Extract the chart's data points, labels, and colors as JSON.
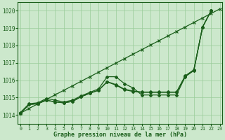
{
  "title": "Graphe pression niveau de la mer (hPa)",
  "hours": [
    0,
    1,
    2,
    3,
    4,
    5,
    6,
    7,
    8,
    9,
    10,
    11,
    12,
    13,
    14,
    15,
    16,
    17,
    18,
    19,
    20,
    21,
    22,
    23
  ],
  "ylim": [
    1013.5,
    1020.5
  ],
  "xlim": [
    -0.3,
    23.3
  ],
  "yticks": [
    1014,
    1015,
    1016,
    1017,
    1018,
    1019,
    1020
  ],
  "bg_color": "#cce8cc",
  "grid_color": "#99cc99",
  "line_color": "#1a5e1a",
  "linear_series": [
    1014.1,
    1014.38,
    1014.64,
    1014.9,
    1015.16,
    1015.42,
    1015.68,
    1015.94,
    1016.2,
    1016.46,
    1016.72,
    1016.98,
    1017.24,
    1017.5,
    1017.76,
    1018.02,
    1018.28,
    1018.54,
    1018.8,
    1019.06,
    1019.32,
    1019.58,
    1019.84,
    1020.1
  ],
  "series": [
    [
      1014.15,
      1014.65,
      1014.7,
      1014.95,
      1014.85,
      1014.75,
      1014.85,
      1015.1,
      1015.3,
      1015.5,
      1016.2,
      1016.2,
      1015.8,
      1015.55,
      1015.15,
      1015.15,
      1015.15,
      1015.15,
      1015.15,
      1016.2,
      1016.55,
      1019.05,
      1020.0,
      null
    ],
    [
      1014.1,
      1014.6,
      1014.65,
      1014.85,
      1014.75,
      1014.7,
      1014.78,
      1015.05,
      1015.25,
      1015.42,
      1015.92,
      1015.75,
      1015.48,
      1015.38,
      1015.32,
      1015.32,
      1015.32,
      1015.32,
      1015.32,
      1016.25,
      1016.6,
      1019.05,
      1020.0,
      null
    ],
    [
      1014.1,
      1014.6,
      1014.65,
      1014.85,
      1014.75,
      1014.7,
      1014.78,
      1015.05,
      1015.25,
      1015.42,
      1015.9,
      1015.72,
      1015.45,
      1015.35,
      1015.3,
      1015.3,
      1015.3,
      1015.3,
      1015.3,
      1016.22,
      1016.58,
      1019.05,
      1020.0,
      null
    ]
  ]
}
